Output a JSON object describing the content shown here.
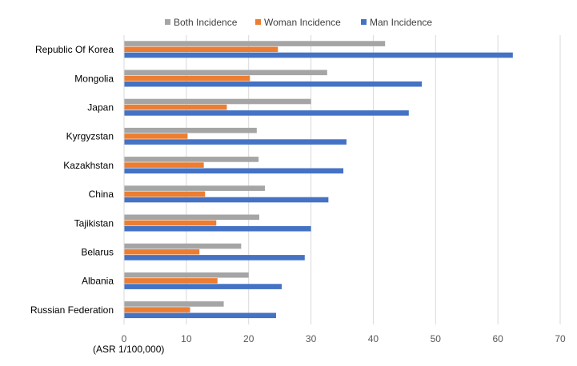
{
  "chart_data": {
    "type": "bar",
    "orientation": "horizontal",
    "categories": [
      "Republic Of Korea",
      "Mongolia",
      "Japan",
      "Kyrgyzstan",
      "Kazakhstan",
      "China",
      "Tajikistan",
      "Belarus",
      "Albania",
      "Russian Federation"
    ],
    "series": [
      {
        "name": "Both Incidence",
        "color": "#a5a5a5",
        "values": [
          41.9,
          32.6,
          30.0,
          21.3,
          21.6,
          22.6,
          21.7,
          18.8,
          20.0,
          16.0
        ]
      },
      {
        "name": "Woman Incidence",
        "color": "#ed7d31",
        "values": [
          24.7,
          20.2,
          16.5,
          10.2,
          12.8,
          13.0,
          14.8,
          12.1,
          15.0,
          10.6
        ]
      },
      {
        "name": "Man Incidence",
        "color": "#4472c4",
        "values": [
          62.4,
          47.8,
          45.7,
          35.7,
          35.2,
          32.8,
          30.0,
          29.0,
          25.3,
          24.4
        ]
      }
    ],
    "title": "",
    "xlabel": "(ASR 1/100,000)",
    "ylabel": "",
    "xlim": [
      0,
      70
    ],
    "xticks": [
      0,
      10,
      20,
      30,
      40,
      50,
      60,
      70
    ],
    "grid": "vertical",
    "legend": "top-center"
  }
}
